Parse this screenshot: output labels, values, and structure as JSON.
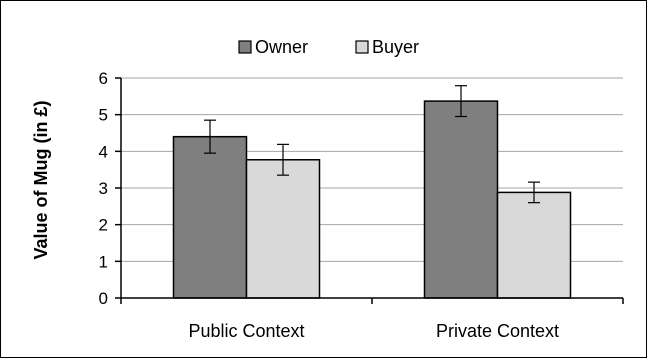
{
  "chart_data": {
    "type": "bar",
    "title": "",
    "xlabel": "",
    "ylabel": "Value of Mug (in £)",
    "categories": [
      "Public Context",
      "Private Context"
    ],
    "series": [
      {
        "name": "Owner",
        "values": [
          4.4,
          5.37
        ],
        "errors": [
          0.45,
          0.42
        ],
        "color": "#7f7f7f"
      },
      {
        "name": "Buyer",
        "values": [
          3.77,
          2.88
        ],
        "errors": [
          0.42,
          0.28
        ],
        "color": "#d9d9d9"
      }
    ],
    "ylim": [
      0,
      6
    ],
    "yticks": [
      0,
      1,
      2,
      3,
      4,
      5,
      6
    ],
    "grid": true,
    "legend_position": "top"
  }
}
